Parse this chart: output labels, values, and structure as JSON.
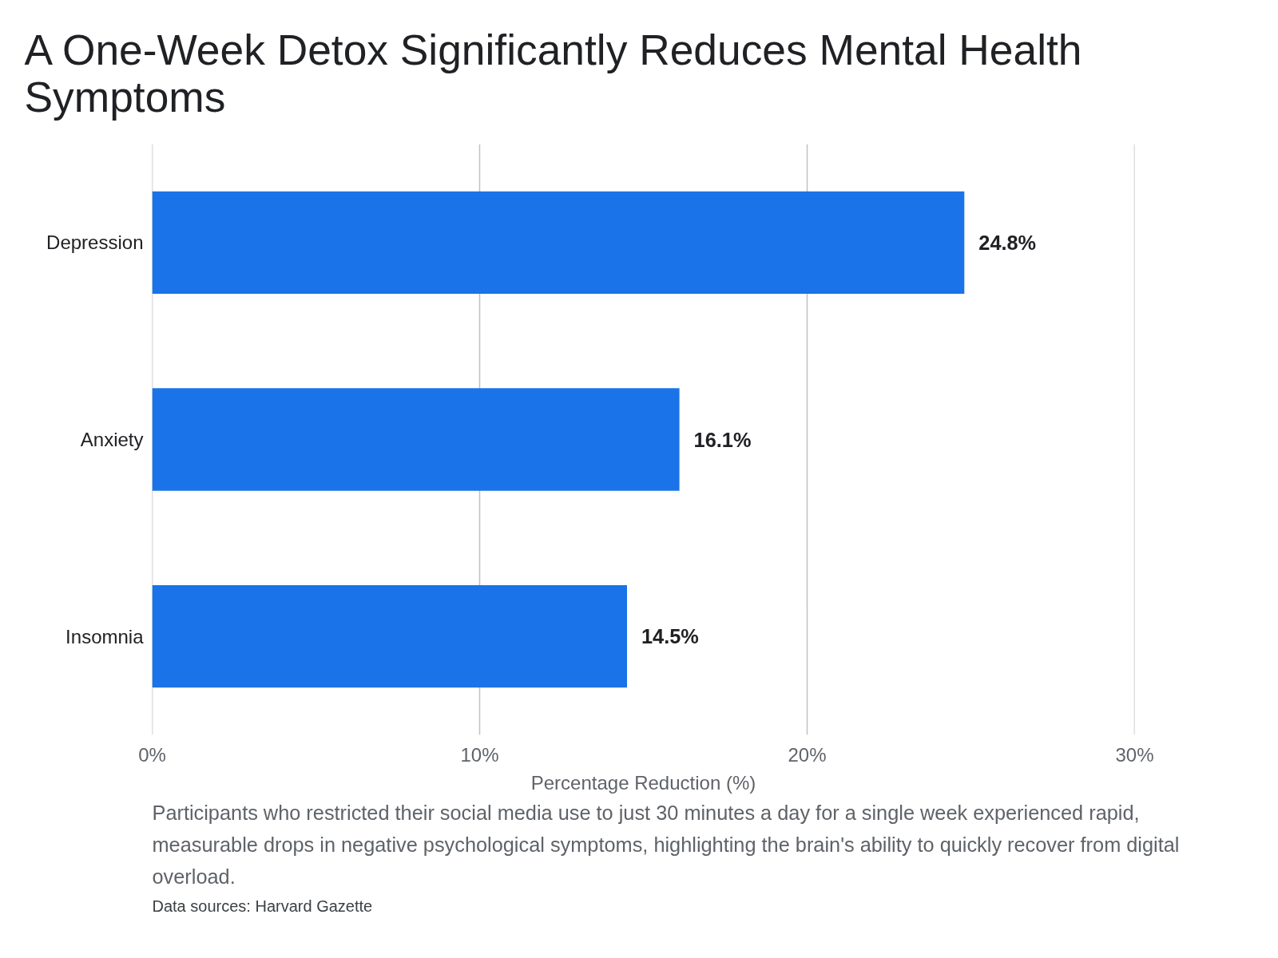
{
  "chart_data": {
    "type": "bar",
    "orientation": "horizontal",
    "title": "A One-Week Detox Significantly Reduces Mental Health Symptoms",
    "categories": [
      "Depression",
      "Anxiety",
      "Insomnia"
    ],
    "values": [
      24.8,
      16.1,
      14.5
    ],
    "color": "#1a73e8",
    "data_labels": true,
    "value_labels": [
      "24.8%",
      "16.1%",
      "14.5%"
    ],
    "xlabel": "Percentage Reduction (%)",
    "xlim": [
      0,
      30
    ],
    "xticks": [
      {
        "value": 0,
        "label": "0%"
      },
      {
        "value": 10,
        "label": "10%"
      },
      {
        "value": 20,
        "label": "20%"
      },
      {
        "value": 30,
        "label": "30%"
      }
    ],
    "grid": "x",
    "annotations": [
      "Participants who restricted their social media use to just 30 minutes a day for a single week experienced rapid, measurable drops in negative psychological symptoms, highlighting the brain's ability to quickly recover from digital overload.",
      "Data sources: Harvard Gazette"
    ]
  }
}
